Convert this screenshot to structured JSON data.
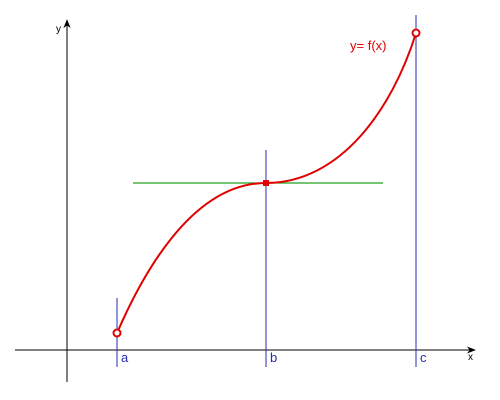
{
  "axes": {
    "x": "x",
    "y": "y"
  },
  "points": [
    {
      "label": "a"
    },
    {
      "label": "b"
    },
    {
      "label": "c"
    }
  ],
  "curve_label": "y= f(x)"
}
